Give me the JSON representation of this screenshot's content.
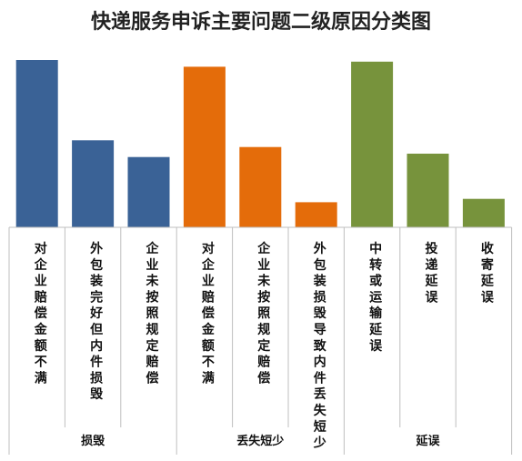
{
  "chart_data": {
    "type": "bar",
    "title": "快递服务申诉主要问题二级原因分类图",
    "xlabel": "",
    "ylabel": "",
    "ylim": [
      0,
      100
    ],
    "grid": false,
    "legend": "none",
    "groups": [
      {
        "name": "损毁",
        "color": "#3a6296",
        "categories": [
          "对企业赔偿金额不满",
          "外包装完好但内件损毁",
          "企业未按照规定赔偿"
        ],
        "values": [
          100,
          52,
          42
        ]
      },
      {
        "name": "丢失短少",
        "color": "#e46c0a",
        "categories": [
          "对企业赔偿金额不满",
          "企业未按照规定赔偿",
          "外包装损毁导致内件丢失短少"
        ],
        "values": [
          96,
          48,
          15
        ]
      },
      {
        "name": "延误",
        "color": "#77933c",
        "categories": [
          "中转或运输延误",
          "投递延误",
          "收寄延误"
        ],
        "values": [
          99,
          44,
          17
        ]
      }
    ]
  }
}
